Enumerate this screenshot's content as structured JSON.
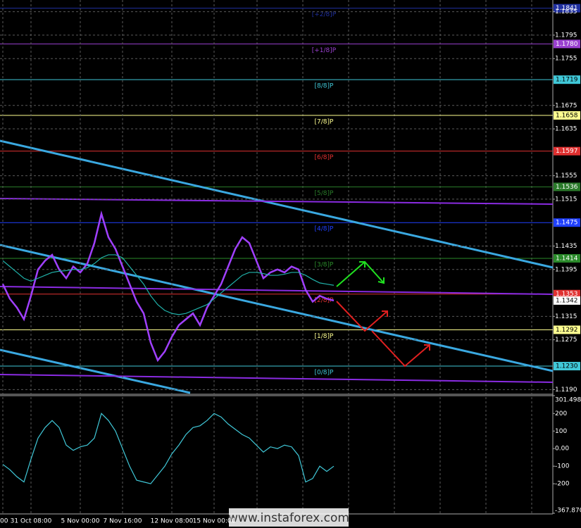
{
  "watermark": "www.instaforex.com",
  "chart_data": [
    {
      "type": "line",
      "ylim": [
        1.1182,
        1.1855
      ],
      "yticks": [
        1.1835,
        1.1795,
        1.1755,
        1.1675,
        1.1635,
        1.1555,
        1.1515,
        1.1435,
        1.1395,
        1.1315,
        1.1275,
        {
          "value": 1.119,
          "label": "1.1190"
        }
      ],
      "grid": true,
      "categories": [
        "00",
        null,
        null,
        null,
        "31 Oct 08:00",
        null,
        null,
        null,
        null,
        null,
        null,
        "5 Nov 00:00",
        null,
        null,
        null,
        null,
        null,
        "7 Nov 16:00",
        null,
        null,
        null,
        null,
        null,
        null,
        "12 Nov 08:00",
        null,
        null,
        null,
        null,
        null,
        "15 Nov 00:00",
        null,
        null,
        null,
        null,
        null,
        null,
        null,
        null,
        null,
        null,
        null,
        null,
        null,
        null,
        null,
        null,
        null
      ],
      "series": [
        {
          "color": "#a040ff",
          "values": [
            1.137,
            1.1345,
            1.133,
            1.131,
            1.135,
            1.1395,
            1.141,
            1.142,
            1.1395,
            1.138,
            1.14,
            1.139,
            1.1405,
            1.144,
            1.149,
            1.145,
            1.143,
            1.14,
            1.137,
            1.134,
            1.132,
            1.127,
            1.124,
            1.1255,
            1.128,
            1.13,
            1.131,
            1.132,
            1.13,
            1.133,
            1.135,
            1.137,
            1.14,
            1.143,
            1.145,
            1.144,
            1.141,
            1.138,
            1.139,
            1.1395,
            1.139,
            1.14,
            1.1395,
            1.136,
            1.134,
            1.135,
            1.1345,
            1.1342
          ]
        },
        {
          "color": "#20b2aa",
          "values": [
            1.141,
            1.14,
            1.139,
            1.138,
            1.1375,
            1.138,
            1.1385,
            1.139,
            1.1392,
            1.1393,
            1.1395,
            1.1395,
            1.1398,
            1.1405,
            1.1415,
            1.142,
            1.142,
            1.1415,
            1.14,
            1.1385,
            1.137,
            1.135,
            1.1335,
            1.1325,
            1.132,
            1.1318,
            1.132,
            1.1325,
            1.133,
            1.1335,
            1.1345,
            1.1355,
            1.1365,
            1.1375,
            1.1385,
            1.139,
            1.139,
            1.1388,
            1.1385,
            1.1385,
            1.1387,
            1.139,
            1.139,
            1.1385,
            1.1378,
            1.1372,
            1.137,
            1.1368
          ]
        }
      ],
      "levels": [
        {
          "name": "[+2/8]P",
          "value": 1.1841,
          "value_label": "1.1841",
          "color": "#2030a0"
        },
        {
          "name": "[+1/8]P",
          "value": 1.178,
          "value_label": "1.1780",
          "color": "#9a40d0"
        },
        {
          "name": "[8/8]P",
          "value": 1.1719,
          "value_label": "1.1719",
          "color": "#40c8d8"
        },
        {
          "name": "[7/8]P",
          "value": 1.1658,
          "value_label": "1.1658",
          "color": "#ffff90"
        },
        {
          "name": "[6/8]P",
          "value": 1.1597,
          "value_label": "1.1597",
          "color": "#e03030"
        },
        {
          "name": "[5/8]P",
          "value": 1.1536,
          "value_label": "1.1536",
          "color": "#2a7a2a"
        },
        {
          "name": "[4/8]P",
          "value": 1.1475,
          "value_label": "1.1475",
          "color": "#2040ff"
        },
        {
          "name": "[3/8]P",
          "value": 1.1414,
          "value_label": "1.1414",
          "color": "#2a8a2a"
        },
        {
          "name": "[2/8]P",
          "value": 1.1353,
          "value_label": "1.1353",
          "color": "#e03030"
        },
        {
          "name": "[1/8]P",
          "value": 1.1292,
          "value_label": "1.1292",
          "color": "#ffff90"
        },
        {
          "name": "[0/8]P",
          "value": 1.123,
          "value_label": "1.1230",
          "color": "#40c8d8"
        }
      ],
      "last_price": 1.1342
    },
    {
      "type": "line",
      "ylim": [
        -367.87,
        301.498
      ],
      "yticks": [
        301.498,
        200,
        100,
        {
          "value": 0,
          "label": "0.00"
        },
        -100,
        -200,
        {
          "value": -367.87,
          "label": "-367.870"
        }
      ],
      "series": [
        {
          "color": "#40c8d8",
          "values": [
            -90,
            -120,
            -160,
            -190,
            -60,
            60,
            120,
            160,
            120,
            20,
            -10,
            10,
            20,
            60,
            200,
            160,
            100,
            0,
            -100,
            -180,
            -190,
            -200,
            -150,
            -100,
            -30,
            20,
            80,
            120,
            130,
            160,
            200,
            180,
            140,
            110,
            80,
            60,
            20,
            -20,
            10,
            0,
            20,
            10,
            -40,
            -190,
            -170,
            -100,
            -130,
            -100
          ]
        }
      ]
    }
  ]
}
